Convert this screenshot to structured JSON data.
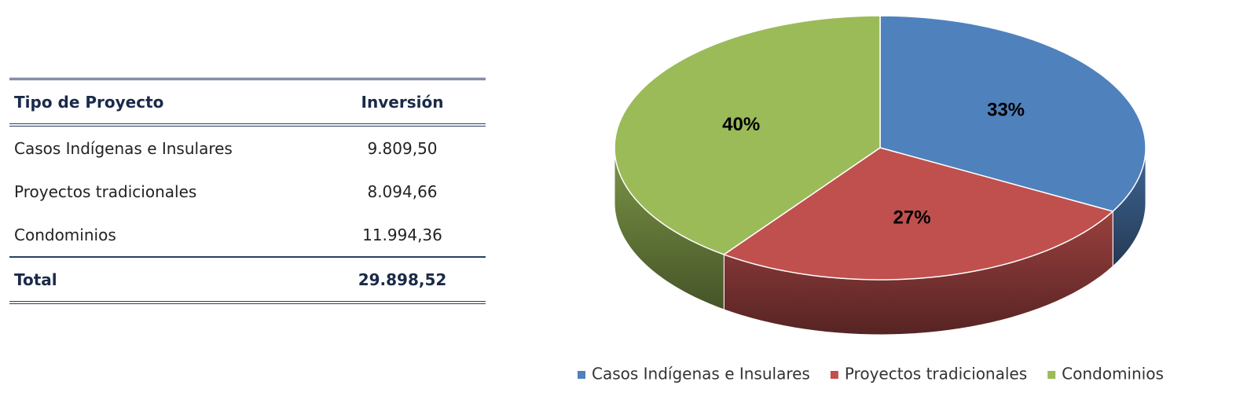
{
  "table": {
    "header": [
      "Tipo de Proyecto",
      "Inversión"
    ],
    "rows": [
      [
        "Casos Indígenas e Insulares",
        "9.809,50"
      ],
      [
        "Proyectos tradicionales",
        "8.094,66"
      ],
      [
        "Condominios",
        "11.994,36"
      ]
    ],
    "total": [
      "Total",
      "29.898,52"
    ]
  },
  "chart_data": {
    "type": "pie",
    "categories": [
      "Casos Indígenas e Insulares",
      "Proyectos tradicionales",
      "Condominios"
    ],
    "values": [
      33,
      27,
      40
    ],
    "value_labels": [
      "33%",
      "27%",
      "40%"
    ],
    "colors": [
      "#4f81bd",
      "#c0504d",
      "#9bbb59"
    ],
    "legend": "bottom"
  }
}
